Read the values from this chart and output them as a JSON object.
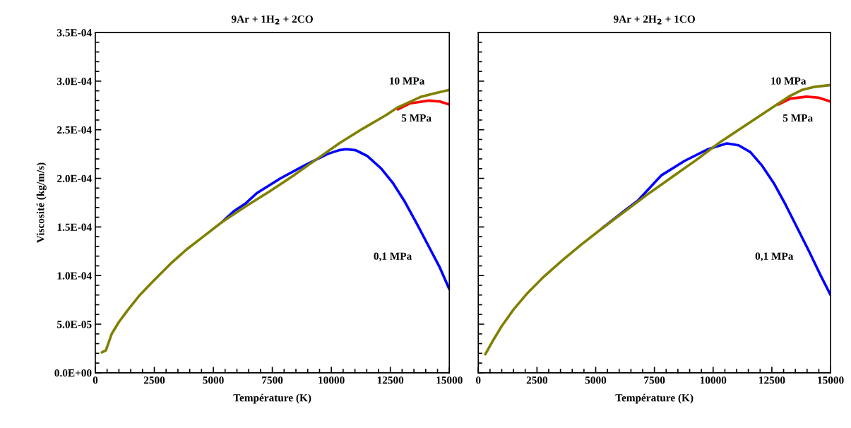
{
  "chart_data": [
    {
      "type": "line",
      "title": "9Ar + 1H$_{2}$ + 2CO",
      "xlabel": "Température (K)",
      "ylabel": "Viscosité (kg/m/s)",
      "xlim": [
        0,
        15000
      ],
      "ylim": [
        0,
        0.00035
      ],
      "grid": false,
      "marker": "none",
      "line_style": "solid",
      "xticks": [
        0,
        2500,
        5000,
        7500,
        10000,
        12500,
        15000
      ],
      "yticks": [
        {
          "value": 0,
          "label": "0.0E+00"
        },
        {
          "value": 5e-05,
          "label": "5.0E-05"
        },
        {
          "value": 0.0001,
          "label": "1.0E-04"
        },
        {
          "value": 0.00015,
          "label": "1.5E-04"
        },
        {
          "value": 0.0002,
          "label": "2.0E-04"
        },
        {
          "value": 0.00025,
          "label": "2.5E-04"
        },
        {
          "value": 0.0003,
          "label": "3.0E-04"
        },
        {
          "value": 0.00035,
          "label": "3.5E-04"
        }
      ],
      "series": [
        {
          "color": "#0000ff",
          "x": [
            5364,
            5861,
            6358,
            6854,
            7847,
            8841,
            9338,
            9835,
            10331,
            10629,
            11027,
            11524,
            12119,
            12616,
            13113,
            13609,
            14106,
            14603,
            15000
          ],
          "values": [
            0.000155,
            0.000166,
            0.000174,
            0.000185,
            0.0002,
            0.000213,
            0.000219,
            0.000225,
            0.000229,
            0.00023,
            0.000229,
            0.000223,
            0.00021,
            0.000195,
            0.000176,
            0.000154,
            0.000131,
            0.000108,
            8.6e-05
          ]
        },
        {
          "color": "#ff0000",
          "x": [
            12815,
            13311,
            14106,
            14603,
            15000
          ],
          "values": [
            0.000271,
            0.000277,
            0.00028,
            0.000279,
            0.000276
          ]
        },
        {
          "color": "#808000",
          "x": [
            278,
            447,
            695,
            993,
            1391,
            1887,
            2484,
            3179,
            3874,
            4570,
            5364,
            6358,
            7351,
            8345,
            9338,
            10331,
            11325,
            12318,
            12815,
            13808,
            14305,
            15000
          ],
          "values": [
            2.1e-05,
            2.3e-05,
            4e-05,
            5.2e-05,
            6.5e-05,
            8e-05,
            9.5e-05,
            0.000112,
            0.000127,
            0.00014,
            0.000155,
            0.000171,
            0.000186,
            0.000202,
            0.000219,
            0.000236,
            0.000251,
            0.000265,
            0.000273,
            0.000284,
            0.000287,
            0.000291
          ]
        }
      ],
      "annotations": [
        "10 MPa",
        "5 MPa",
        "0,1 MPa"
      ]
    },
    {
      "type": "line",
      "title": "9Ar + 2H$_{2}$ + 1CO",
      "xlabel": "Température (K)",
      "xlim": [
        0,
        15000
      ],
      "ylim": [
        0,
        0.00035
      ],
      "grid": false,
      "marker": "none",
      "line_style": "solid",
      "tick_labels": "x",
      "xticks": [
        0,
        2500,
        5000,
        7500,
        10000,
        12500,
        15000
      ],
      "yticks": [
        {
          "value": 0,
          "label": null
        },
        {
          "value": 5e-05,
          "label": null
        },
        {
          "value": 0.0001,
          "label": null
        },
        {
          "value": 0.00015,
          "label": null
        },
        {
          "value": 0.0002,
          "label": null
        },
        {
          "value": 0.00025,
          "label": null
        },
        {
          "value": 0.0003,
          "label": null
        },
        {
          "value": 0.00035,
          "label": null
        }
      ],
      "series": [
        {
          "color": "#0000ff",
          "x": [
            5293,
            6292,
            6791,
            7790,
            8788,
            9787,
            10586,
            11086,
            11586,
            12085,
            12584,
            13083,
            13583,
            14082,
            14581,
            15000
          ],
          "values": [
            0.000149,
            0.000168,
            0.000177,
            0.000203,
            0.000218,
            0.00023,
            0.000236,
            0.000234,
            0.000227,
            0.000213,
            0.000195,
            0.000173,
            0.000149,
            0.000125,
            0.0001,
            8e-05
          ]
        },
        {
          "color": "#ff0000",
          "x": [
            12783,
            13283,
            13982,
            14481,
            15000
          ],
          "values": [
            0.000276,
            0.000282,
            0.000284,
            0.000283,
            0.000279
          ]
        },
        {
          "color": "#808000",
          "x": [
            300,
            599,
            999,
            1498,
            2097,
            2796,
            3595,
            4394,
            5293,
            6292,
            7291,
            8289,
            9288,
            10287,
            11285,
            12284,
            12783,
            13283,
            13782,
            14281,
            15000
          ],
          "values": [
            1.9e-05,
            3.2e-05,
            4.8e-05,
            6.5e-05,
            8.2e-05,
            9.9e-05,
            0.000116,
            0.000132,
            0.000149,
            0.000167,
            0.000185,
            0.000202,
            0.000219,
            0.000237,
            0.000253,
            0.000269,
            0.000277,
            0.000285,
            0.000291,
            0.000294,
            0.000296
          ]
        }
      ],
      "annotations": [
        "10 MPa",
        "5 MPa",
        "0,1 MPa"
      ]
    }
  ]
}
